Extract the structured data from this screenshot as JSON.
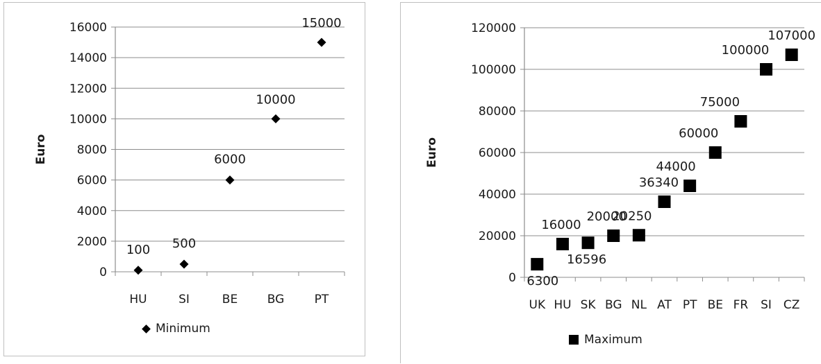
{
  "chart_data": [
    {
      "type": "scatter",
      "categories": [
        "HU",
        "SI",
        "BE",
        "BG",
        "PT"
      ],
      "series": [
        {
          "name": "Minimum",
          "values": [
            100,
            500,
            6000,
            10000,
            15000
          ],
          "marker": "diamond"
        }
      ],
      "data_labels": [
        "100",
        "500",
        "6000",
        "10000",
        "15000"
      ],
      "title": "",
      "xlabel": "",
      "ylabel": "Euro",
      "ylim": [
        0,
        16000
      ],
      "yticks": [
        0,
        2000,
        4000,
        6000,
        8000,
        10000,
        12000,
        14000,
        16000
      ],
      "grid": true,
      "legend_placement": "bottom",
      "legend_label": "Minimum",
      "colors": {
        "marker": "#000000",
        "grid": "#8c8c8c",
        "axis": "#8c8c8c"
      }
    },
    {
      "type": "scatter",
      "categories": [
        "UK",
        "HU",
        "SK",
        "BG",
        "NL",
        "AT",
        "PT",
        "BE",
        "FR",
        "SI",
        "CZ"
      ],
      "series": [
        {
          "name": "Maximum",
          "values": [
            6300,
            16000,
            16596,
            20000,
            20250,
            36340,
            44000,
            60000,
            75000,
            100000,
            107000
          ],
          "marker": "square"
        }
      ],
      "data_labels": [
        "6300",
        "16000",
        "16596",
        "20000",
        "20250",
        "36340",
        "44000",
        "60000",
        "75000",
        "100000",
        "107000"
      ],
      "title": "",
      "xlabel": "",
      "ylabel": "Euro",
      "ylim": [
        0,
        120000
      ],
      "yticks": [
        0,
        20000,
        40000,
        60000,
        80000,
        100000,
        120000
      ],
      "grid": true,
      "legend_placement": "bottom",
      "legend_label": "Maximum",
      "colors": {
        "marker": "#000000",
        "grid": "#8c8c8c",
        "axis": "#8c8c8c"
      }
    }
  ]
}
